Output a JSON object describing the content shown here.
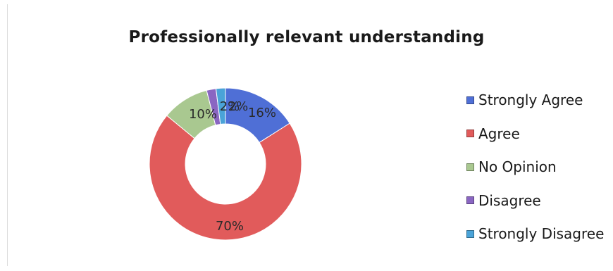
{
  "chart_data": {
    "type": "pie",
    "variant": "doughnut",
    "title": "Professionally relevant understanding",
    "legend_position": "right",
    "slices": [
      {
        "label": "Strongly Agree",
        "value": 16,
        "display": "16%",
        "color": "#4f6fd6"
      },
      {
        "label": "Agree",
        "value": 70,
        "display": "70%",
        "color": "#e15b5b"
      },
      {
        "label": "No Opinion",
        "value": 10,
        "display": "10%",
        "color": "#a9c890"
      },
      {
        "label": "Disagree",
        "value": 2,
        "display": "2%",
        "color": "#8a66c2"
      },
      {
        "label": "Strongly Disagree",
        "value": 2,
        "display": "2%",
        "color": "#4aa3d8"
      }
    ]
  }
}
